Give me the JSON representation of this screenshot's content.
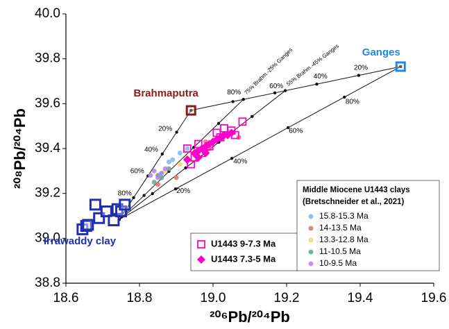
{
  "chart_data": {
    "type": "scatter",
    "x_label": "²⁰⁶Pb/²⁰⁴Pb",
    "y_label": "²⁰⁸Pb/²⁰⁴Pb",
    "xlim": [
      18.6,
      19.6
    ],
    "ylim": [
      38.8,
      40.0
    ],
    "xticks": [
      18.6,
      18.8,
      {
        "value": 19,
        "label": "19.0"
      },
      19.2,
      19.4,
      19.6
    ],
    "yticks": [
      {
        "value": 38.8,
        "label": "38.8"
      },
      {
        "value": 39,
        "label": "39.0"
      },
      39.2,
      39.4,
      39.6,
      39.8,
      {
        "value": 40,
        "label": "40.0"
      }
    ],
    "endmembers": [
      {
        "name": "Ganges",
        "color": "#1e88e5",
        "x": [
          19.51
        ],
        "y": [
          39.765
        ]
      },
      {
        "name": "Brahmaputra",
        "color": "#8b1a1a",
        "x": [
          18.94
        ],
        "y": [
          39.57
        ]
      },
      {
        "name": "Irrawaddy clay",
        "color": "#1f2fb0",
        "x": [
          18.645,
          18.655,
          18.66,
          18.68,
          18.69,
          18.71,
          18.73,
          18.74,
          18.75,
          18.76
        ],
        "y": [
          39.04,
          39.055,
          39.06,
          39.15,
          39.09,
          39.12,
          39.08,
          39.13,
          39.12,
          39.15
        ]
      }
    ],
    "mixing_lines": [
      {
        "x": [
          18.745,
          18.784,
          18.823,
          18.862,
          18.901,
          18.94
        ],
        "y": [
          39.084,
          39.181,
          39.278,
          39.376,
          39.473,
          39.57
        ]
      },
      {
        "x": [
          18.94,
          19.054,
          19.168,
          19.282,
          19.396,
          19.51
        ],
        "y": [
          39.57,
          39.609,
          39.648,
          39.687,
          39.726,
          39.765
        ]
      },
      {
        "x": [
          18.745,
          18.898,
          19.051,
          19.204,
          19.357,
          19.51
        ],
        "y": [
          39.084,
          39.22,
          39.356,
          39.493,
          39.629,
          39.765
        ]
      },
      {
        "name": "75% Brahm.-25% Ganges",
        "x": [
          18.745,
          18.8125,
          18.88,
          18.9475,
          19.015,
          19.0825
        ],
        "y": [
          39.084,
          39.191,
          39.298,
          39.405,
          39.512,
          39.619
        ]
      },
      {
        "name": "55% Brahm.-45% Ganges",
        "x": [
          18.745,
          18.8353,
          18.9256,
          19.0159,
          19.1062,
          19.1965
        ],
        "y": [
          39.084,
          39.199,
          39.314,
          39.428,
          39.543,
          39.658
        ]
      }
    ],
    "annotations": [
      {
        "text": "80%",
        "x": 18.76,
        "y": 39.2
      },
      {
        "text": "60%",
        "x": 18.794,
        "y": 39.298
      },
      {
        "text": "40%",
        "x": 18.832,
        "y": 39.394
      },
      {
        "text": "20%",
        "x": 18.87,
        "y": 39.487
      },
      {
        "text": "80%",
        "x": 19.057,
        "y": 39.65
      },
      {
        "text": "60%",
        "x": 19.172,
        "y": 39.678
      },
      {
        "text": "40%",
        "x": 19.292,
        "y": 39.72
      },
      {
        "text": "20%",
        "x": 19.402,
        "y": 39.759
      },
      {
        "text": "20%",
        "x": 18.919,
        "y": 39.211
      },
      {
        "text": "40%",
        "x": 19.074,
        "y": 39.341
      },
      {
        "text": "60%",
        "x": 19.225,
        "y": 39.477
      },
      {
        "text": "80%",
        "x": 19.379,
        "y": 39.607
      }
    ],
    "series": [
      {
        "name": "U1443 9-7.3 Ma",
        "color": "#ff00cc",
        "marker": "square",
        "legend": "bottom-center",
        "x": [
          18.93,
          18.95,
          18.94,
          18.96,
          18.99,
          19.01,
          19.03,
          19.05,
          19.08,
          19.06,
          18.97,
          19.02
        ],
        "y": [
          39.4,
          39.36,
          39.33,
          39.42,
          39.41,
          39.47,
          39.49,
          39.48,
          39.52,
          39.46,
          39.38,
          39.45
        ]
      },
      {
        "name": "U1443 7.3-5 Ma",
        "color": "#ff00cc",
        "marker": "diamond",
        "legend": "bottom-center",
        "x": [
          18.93,
          18.95,
          18.96,
          18.97,
          18.98,
          18.99,
          19.0,
          19.01,
          19.02,
          19.03,
          19.04,
          19.05,
          18.96,
          18.98
        ],
        "y": [
          39.35,
          39.38,
          39.39,
          39.4,
          39.41,
          39.42,
          39.43,
          39.44,
          39.45,
          39.46,
          39.46,
          39.47,
          39.36,
          39.38
        ]
      },
      {
        "name": "15.8-15.3 Ma",
        "color": "#7ab8f5",
        "marker": "circle",
        "legend": "bottom-right",
        "x": [
          18.88,
          18.89,
          18.86,
          18.91,
          18.93
        ],
        "y": [
          39.34,
          39.35,
          39.29,
          39.38,
          39.4
        ]
      },
      {
        "name": "14-13.5 Ma",
        "color": "#d9706e",
        "marker": "circle",
        "legend": "bottom-right",
        "x": [
          18.9,
          18.95,
          18.98,
          18.85,
          18.99,
          19.07
        ],
        "y": [
          39.27,
          39.37,
          39.43,
          39.24,
          39.4,
          39.45
        ]
      },
      {
        "name": "13.3-12.8 Ma",
        "color": "#f5d36b",
        "marker": "circle",
        "legend": "bottom-right",
        "x": [
          18.87,
          18.91,
          18.93,
          18.96
        ],
        "y": [
          39.3,
          39.33,
          39.36,
          39.38
        ]
      },
      {
        "name": "11-10.5 Ma",
        "color": "#5fa88a",
        "marker": "circle",
        "legend": "bottom-right",
        "x": [
          18.84,
          18.86,
          18.88,
          18.85
        ],
        "y": [
          39.25,
          39.27,
          39.31,
          39.28
        ]
      },
      {
        "name": "10-9.5 Ma",
        "color": "#b77ff0",
        "marker": "circle",
        "legend": "bottom-right",
        "x": [
          18.84,
          18.86,
          18.85,
          18.87,
          18.83
        ],
        "y": [
          39.3,
          39.29,
          39.27,
          39.31,
          39.28
        ]
      }
    ],
    "legend_title": [
      "Middle Miocene U1443 clays",
      "(Bretschneider et al., 2021)"
    ]
  }
}
